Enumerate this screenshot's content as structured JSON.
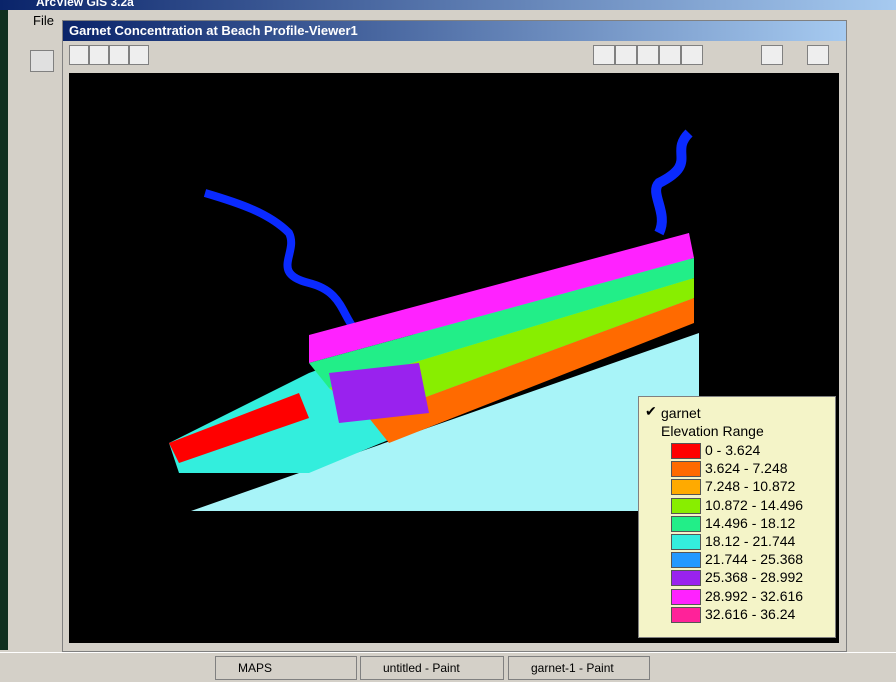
{
  "app": {
    "title": "ArcView GIS 3.2a",
    "menu": [
      "File"
    ]
  },
  "window": {
    "title": "Garnet Concentration at Beach Profile-Viewer1"
  },
  "legend": {
    "layer": "garnet",
    "subtitle": "Elevation Range",
    "items": [
      {
        "label": "0 - 3.624",
        "color": "#ff0000"
      },
      {
        "label": "3.624 - 7.248",
        "color": "#ff6a00"
      },
      {
        "label": "7.248 - 10.872",
        "color": "#ffaa00"
      },
      {
        "label": "10.872 - 14.496",
        "color": "#88ee00"
      },
      {
        "label": "14.496 - 18.12",
        "color": "#22ee88"
      },
      {
        "label": "18.12 - 21.744",
        "color": "#33eedd"
      },
      {
        "label": "21.744 - 25.368",
        "color": "#2299ff"
      },
      {
        "label": "25.368 - 28.992",
        "color": "#9922ee"
      },
      {
        "label": "28.992 - 32.616",
        "color": "#ff22ff"
      },
      {
        "label": "32.616 - 36.24",
        "color": "#ff2299"
      }
    ]
  },
  "taskbar": [
    "MAPS",
    "untitled - Paint",
    "garnet-1 - Paint"
  ]
}
